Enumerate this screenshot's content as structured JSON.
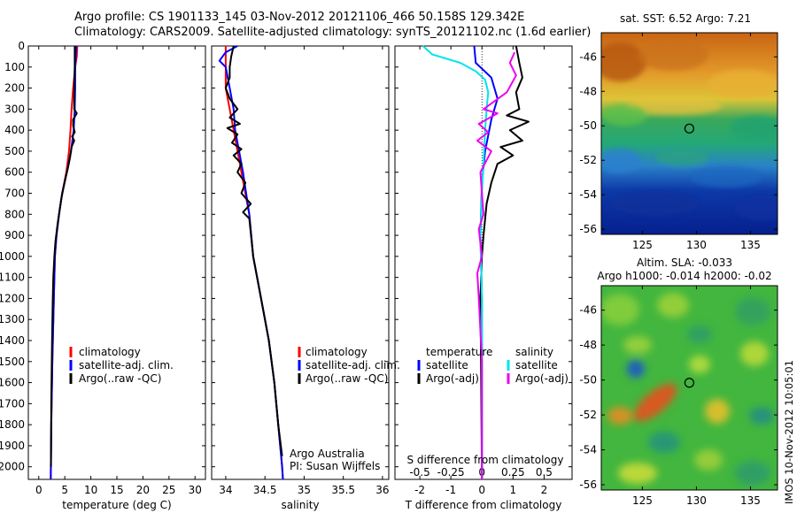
{
  "header": {
    "line1": "Argo profile: CS 1901133_145 03-Nov-2012 20121106_466 50.158S 129.342E",
    "line2": "Climatology: CARS2009. Satellite-adjusted climatology: synTS_20121102.nc (1.6d earlier)"
  },
  "side_label": "IMOS 10-Nov-2012 10:05:01",
  "colors": {
    "climatology": "#ff0000",
    "satellite": "#0000ff",
    "argo": "#000000",
    "sat_salinity": "#00e5ee",
    "argo_salinity": "#ee00ee"
  },
  "chart_data": [
    {
      "type": "line",
      "name": "temperature-profile",
      "xlabel": "temperature (deg C)",
      "x_ticks": [
        "0",
        "5",
        "10",
        "15",
        "20",
        "25",
        "30"
      ],
      "y_ticks": [
        "0",
        "100",
        "200",
        "300",
        "400",
        "500",
        "600",
        "700",
        "800",
        "900",
        "1000",
        "1100",
        "1200",
        "1300",
        "1400",
        "1500",
        "1600",
        "1700",
        "1800",
        "1900",
        "2000"
      ],
      "xlim": [
        -2,
        32
      ],
      "ylim": [
        2060,
        0
      ],
      "legend": {
        "position": "lower-center",
        "entries": [
          "climatology",
          "satellite-adj. clim.",
          "Argo(..raw -QC)"
        ]
      },
      "series": [
        {
          "name": "climatology",
          "color": "climatology",
          "points": [
            [
              7.4,
              0
            ],
            [
              7.3,
              50
            ],
            [
              7.0,
              100
            ],
            [
              6.6,
              200
            ],
            [
              6.3,
              300
            ],
            [
              6.1,
              400
            ],
            [
              5.8,
              500
            ],
            [
              5.3,
              600
            ],
            [
              4.5,
              700
            ],
            [
              3.9,
              800
            ],
            [
              3.4,
              900
            ],
            [
              3.1,
              1000
            ],
            [
              2.9,
              1200
            ],
            [
              2.6,
              1500
            ],
            [
              2.4,
              1800
            ],
            [
              2.3,
              2060
            ]
          ]
        },
        {
          "name": "satellite-adj. clim.",
          "color": "satellite",
          "points": [
            [
              7.2,
              0
            ],
            [
              7.1,
              50
            ],
            [
              7.0,
              100
            ],
            [
              7.0,
              200
            ],
            [
              6.9,
              300
            ],
            [
              6.7,
              400
            ],
            [
              6.2,
              500
            ],
            [
              5.4,
              600
            ],
            [
              4.5,
              700
            ],
            [
              3.9,
              800
            ],
            [
              3.4,
              900
            ],
            [
              3.1,
              1000
            ],
            [
              2.9,
              1200
            ],
            [
              2.6,
              1500
            ],
            [
              2.4,
              1800
            ],
            [
              2.3,
              2060
            ]
          ]
        },
        {
          "name": "Argo(..raw -QC)",
          "color": "argo",
          "points": [
            [
              6.9,
              0
            ],
            [
              6.9,
              50
            ],
            [
              6.9,
              100
            ],
            [
              6.8,
              200
            ],
            [
              6.8,
              300
            ],
            [
              7.3,
              320
            ],
            [
              6.6,
              350
            ],
            [
              6.6,
              380
            ],
            [
              6.9,
              410
            ],
            [
              6.4,
              430
            ],
            [
              6.8,
              450
            ],
            [
              6.3,
              480
            ],
            [
              6.0,
              530
            ],
            [
              5.6,
              580
            ],
            [
              5.2,
              620
            ],
            [
              4.7,
              680
            ],
            [
              4.3,
              730
            ],
            [
              4.0,
              780
            ],
            [
              3.6,
              850
            ],
            [
              3.2,
              930
            ],
            [
              3.0,
              1000
            ],
            [
              2.8,
              1100
            ],
            [
              2.7,
              1200
            ],
            [
              2.55,
              1400
            ],
            [
              2.4,
              1700
            ],
            [
              2.35,
              2000
            ]
          ]
        }
      ]
    },
    {
      "type": "line",
      "name": "salinity-profile",
      "xlabel": "salinity",
      "x_ticks": [
        "34",
        "34.5",
        "35",
        "35.5",
        "36"
      ],
      "xlim": [
        33.82,
        36.08
      ],
      "ylim": [
        2060,
        0
      ],
      "legend": {
        "position": "lower-center",
        "entries": [
          "climatology",
          "satellite-adj. clim.",
          "Argo(..raw -QC)"
        ]
      },
      "annotations": [
        "Argo Australia",
        "PI: Susan Wijffels"
      ],
      "series": [
        {
          "name": "climatology",
          "color": "climatology",
          "points": [
            [
              34.0,
              0
            ],
            [
              34.0,
              100
            ],
            [
              34.0,
              200
            ],
            [
              34.05,
              300
            ],
            [
              34.1,
              400
            ],
            [
              34.15,
              500
            ],
            [
              34.2,
              600
            ],
            [
              34.3,
              800
            ],
            [
              34.35,
              1000
            ],
            [
              34.45,
              1200
            ],
            [
              34.55,
              1400
            ],
            [
              34.62,
              1600
            ],
            [
              34.67,
              1800
            ],
            [
              34.72,
              2000
            ],
            [
              34.73,
              2060
            ]
          ]
        },
        {
          "name": "satellite-adj. clim.",
          "color": "satellite",
          "points": [
            [
              34.15,
              0
            ],
            [
              34.0,
              30
            ],
            [
              33.92,
              70
            ],
            [
              34.0,
              100
            ],
            [
              34.05,
              200
            ],
            [
              34.1,
              300
            ],
            [
              34.12,
              400
            ],
            [
              34.17,
              500
            ],
            [
              34.22,
              600
            ],
            [
              34.3,
              800
            ],
            [
              34.35,
              1000
            ],
            [
              34.45,
              1200
            ],
            [
              34.55,
              1400
            ],
            [
              34.62,
              1600
            ],
            [
              34.67,
              1800
            ],
            [
              34.72,
              2000
            ],
            [
              34.73,
              2060
            ]
          ]
        },
        {
          "name": "Argo(..raw -QC)",
          "color": "argo",
          "points": [
            [
              34.1,
              0
            ],
            [
              34.07,
              50
            ],
            [
              34.05,
              100
            ],
            [
              34.05,
              150
            ],
            [
              34.0,
              200
            ],
            [
              34.05,
              250
            ],
            [
              34.15,
              300
            ],
            [
              34.05,
              340
            ],
            [
              34.18,
              370
            ],
            [
              34.02,
              390
            ],
            [
              34.15,
              420
            ],
            [
              34.08,
              460
            ],
            [
              34.2,
              490
            ],
            [
              34.1,
              520
            ],
            [
              34.2,
              560
            ],
            [
              34.15,
              600
            ],
            [
              34.25,
              650
            ],
            [
              34.2,
              700
            ],
            [
              34.32,
              750
            ],
            [
              34.22,
              790
            ],
            [
              34.3,
              820
            ],
            [
              34.35,
              1000
            ],
            [
              34.45,
              1200
            ],
            [
              34.55,
              1400
            ],
            [
              34.62,
              1600
            ],
            [
              34.67,
              1800
            ],
            [
              34.72,
              1950
            ]
          ]
        }
      ]
    },
    {
      "type": "line",
      "name": "difference-profile",
      "xlabel": "T difference from climatology",
      "x2label": "S difference from climatology",
      "x_ticks": [
        "-2",
        "-1",
        "0",
        "1",
        "2"
      ],
      "s_ticks": [
        "-0.5",
        "-0.25",
        "0",
        "0.25",
        "0.5"
      ],
      "xlim": [
        -2.8,
        2.9
      ],
      "ylim": [
        2060,
        0
      ],
      "legend": {
        "position": "lower-center",
        "col1_title": "temperature",
        "col1": [
          "satellite",
          "Argo(-adj)"
        ],
        "col2_title": "salinity",
        "col2": [
          "satellite",
          "Argo(-adj)"
        ]
      },
      "series": [
        {
          "name": "temperature satellite",
          "color": "satellite",
          "points": [
            [
              -0.25,
              0
            ],
            [
              -0.2,
              80
            ],
            [
              0.3,
              150
            ],
            [
              0.5,
              250
            ],
            [
              0.3,
              350
            ],
            [
              0.1,
              500
            ],
            [
              0.0,
              650
            ],
            [
              -0.05,
              900
            ],
            [
              0.0,
              1200
            ],
            [
              0.0,
              2060
            ]
          ]
        },
        {
          "name": "temperature Argo(-adj)",
          "color": "argo",
          "points": [
            [
              1.1,
              0
            ],
            [
              1.2,
              80
            ],
            [
              1.3,
              150
            ],
            [
              1.1,
              220
            ],
            [
              1.2,
              300
            ],
            [
              0.8,
              330
            ],
            [
              1.5,
              360
            ],
            [
              0.9,
              400
            ],
            [
              1.3,
              450
            ],
            [
              0.6,
              480
            ],
            [
              1.0,
              520
            ],
            [
              0.5,
              560
            ],
            [
              0.3,
              650
            ],
            [
              0.15,
              750
            ],
            [
              0.05,
              900
            ],
            [
              0.0,
              1000
            ],
            [
              -0.05,
              1200
            ],
            [
              -0.03,
              1500
            ],
            [
              0.0,
              2060
            ]
          ]
        },
        {
          "name": "salinity satellite",
          "color": "sat_salinity",
          "points": [
            [
              -1.9,
              0
            ],
            [
              -1.6,
              40
            ],
            [
              -0.7,
              80
            ],
            [
              -0.2,
              120
            ],
            [
              0.1,
              160
            ],
            [
              0.2,
              220
            ],
            [
              0.15,
              300
            ],
            [
              0.1,
              400
            ],
            [
              0.05,
              550
            ],
            [
              0.0,
              700
            ],
            [
              -0.05,
              900
            ],
            [
              0.0,
              1200
            ],
            [
              0.0,
              2060
            ]
          ]
        },
        {
          "name": "salinity Argo(-adj)",
          "color": "argo_salinity",
          "points": [
            [
              1.05,
              30
            ],
            [
              0.9,
              80
            ],
            [
              1.1,
              140
            ],
            [
              0.8,
              220
            ],
            [
              0.05,
              300
            ],
            [
              0.5,
              320
            ],
            [
              -0.1,
              370
            ],
            [
              0.2,
              410
            ],
            [
              -0.15,
              450
            ],
            [
              0.3,
              500
            ],
            [
              -0.05,
              600
            ],
            [
              0.0,
              700
            ],
            [
              0.05,
              800
            ],
            [
              -0.1,
              870
            ],
            [
              0.0,
              1000
            ],
            [
              -0.15,
              1080
            ],
            [
              -0.1,
              1200
            ],
            [
              0.0,
              1500
            ],
            [
              0.0,
              2060
            ]
          ]
        }
      ]
    },
    {
      "type": "heatmap",
      "name": "sst-map",
      "title": "sat. SST: 6.52 Argo: 7.21",
      "x_ticks": [
        "125",
        "130",
        "135"
      ],
      "y_ticks": [
        "-46",
        "-48",
        "-50",
        "-52",
        "-54",
        "-56"
      ],
      "xlim": [
        121.2,
        137.5
      ],
      "ylim": [
        -56.3,
        -44.6
      ],
      "marker": {
        "lon": 129.342,
        "lat": -50.158
      }
    },
    {
      "type": "heatmap",
      "name": "sla-map",
      "title_line1": "Altim. SLA: -0.033",
      "title_line2": "Argo h1000: -0.014 h2000: -0.02",
      "x_ticks": [
        "125",
        "130",
        "135"
      ],
      "y_ticks": [
        "-46",
        "-48",
        "-50",
        "-52",
        "-54",
        "-56"
      ],
      "xlim": [
        121.2,
        137.5
      ],
      "ylim": [
        -56.3,
        -44.6
      ],
      "marker": {
        "lon": 129.342,
        "lat": -50.158
      }
    }
  ]
}
